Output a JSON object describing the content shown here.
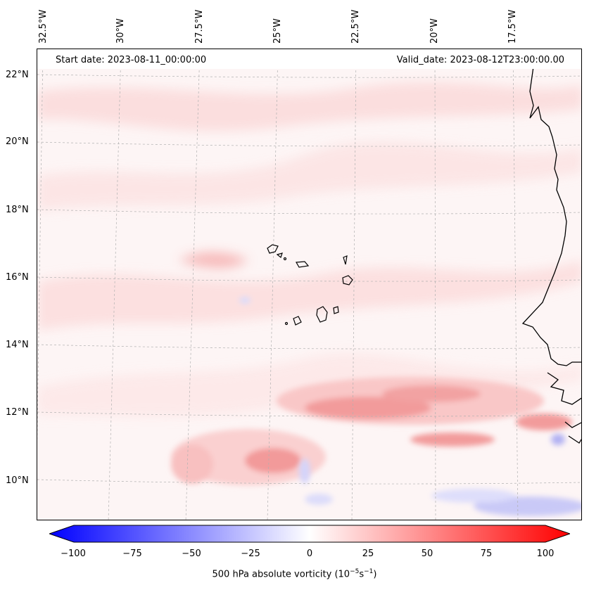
{
  "map": {
    "start_date": "Start date: 2023-08-11_00:00:00",
    "valid_date": "Valid_date: 2023-08-12T23:00:00.00",
    "lon_labels": [
      "32.5°W",
      "30°W",
      "27.5°W",
      "25°W",
      "22.5°W",
      "20°W",
      "17.5°W"
    ],
    "lat_labels": [
      "22°N",
      "20°N",
      "18°N",
      "16°N",
      "14°N",
      "12°N",
      "10°N"
    ]
  },
  "colorbar": {
    "ticks": [
      "−100",
      "−75",
      "−50",
      "−25",
      "0",
      "25",
      "50",
      "75",
      "100"
    ],
    "label_prefix": "500 hPa absolute vorticity (10",
    "label_exp1": "−5",
    "label_mid": "s",
    "label_exp2": "−1",
    "label_suffix": ")",
    "min": -100,
    "max": 100,
    "neg_color": "#0000ff",
    "pos_color": "#ff0000"
  },
  "colors": {
    "coast": "#000000",
    "grid": "#b0b0b0"
  }
}
